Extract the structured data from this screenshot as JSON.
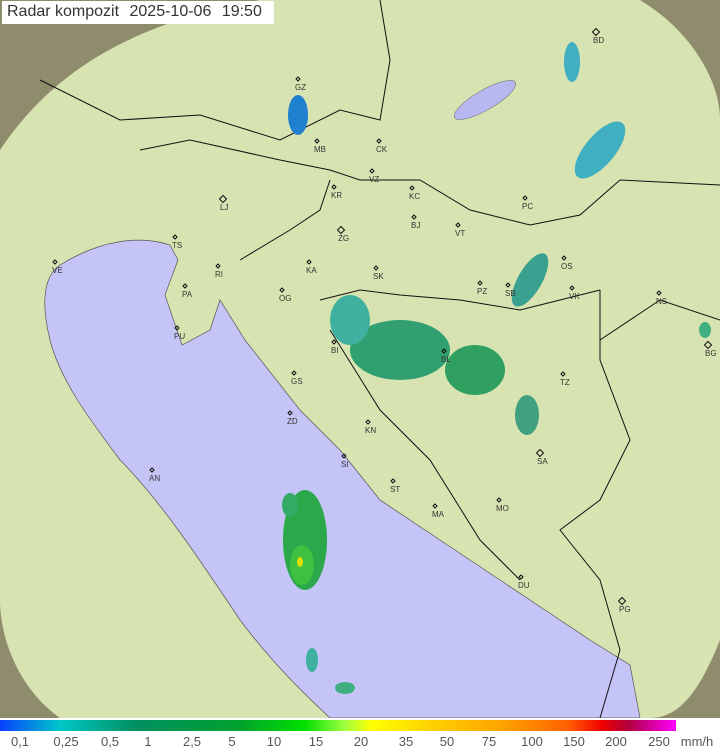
{
  "title": {
    "label": "Radar kompozit",
    "date": "2025-10-06",
    "time": "19:50"
  },
  "legend": {
    "ticks": [
      "0,1",
      "0,25",
      "0,5",
      "1",
      "2,5",
      "5",
      "10",
      "15",
      "20",
      "35",
      "50",
      "75",
      "100",
      "150",
      "200",
      "250"
    ],
    "unit": "mm/h"
  },
  "cities": [
    "GZ",
    "MB",
    "CK",
    "VZ",
    "KR",
    "KC",
    "LJ",
    "ZG",
    "BJ",
    "VT",
    "PC",
    "BD",
    "TS",
    "VE",
    "KA",
    "SK",
    "RI",
    "PA",
    "OG",
    "PZ",
    "SB",
    "OS",
    "VK",
    "NS",
    "PU",
    "BI",
    "BL",
    "TZ",
    "GS",
    "BG",
    "ZD",
    "KN",
    "SI",
    "SA",
    "AN",
    "ST",
    "MA",
    "MO",
    "DU",
    "PG"
  ],
  "colors": {
    "sea": "#c4c4f4",
    "land": "#d6e4b0",
    "outside": "#8a8a6a",
    "border": "#000000"
  }
}
